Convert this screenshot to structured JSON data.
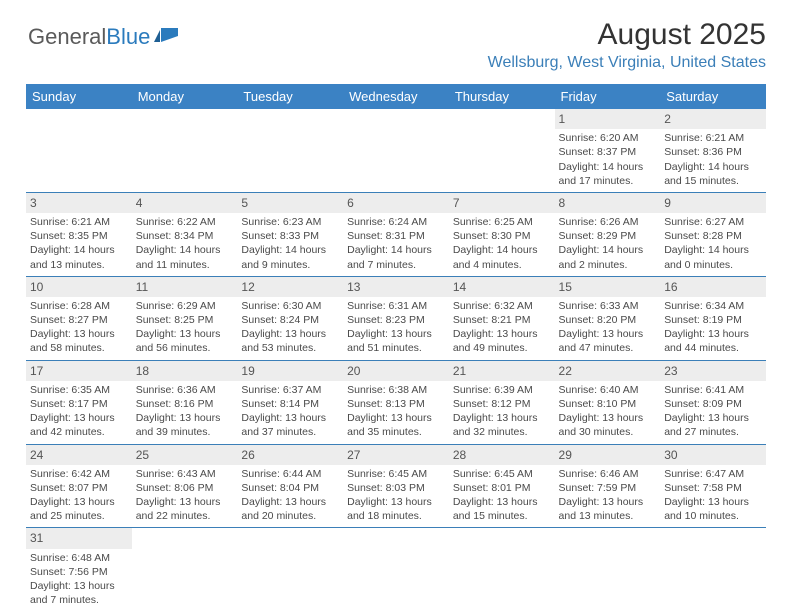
{
  "logo": {
    "general": "General",
    "blue": "Blue"
  },
  "header": {
    "month_title": "August 2025",
    "location": "Wellsburg, West Virginia, United States"
  },
  "colors": {
    "header_bg": "#3b82c4",
    "header_text": "#ffffff",
    "location_text": "#3b7fb8",
    "daynum_bg": "#ededed",
    "cell_border": "#3b7fb8",
    "body_text": "#4a4a4a",
    "logo_general": "#5a5a5a",
    "logo_blue": "#2b7bbd",
    "flag_fill": "#2b7bbd"
  },
  "day_headers": [
    "Sunday",
    "Monday",
    "Tuesday",
    "Wednesday",
    "Thursday",
    "Friday",
    "Saturday"
  ],
  "weeks": [
    [
      null,
      null,
      null,
      null,
      null,
      {
        "n": "1",
        "sr": "Sunrise: 6:20 AM",
        "ss": "Sunset: 8:37 PM",
        "dl1": "Daylight: 14 hours",
        "dl2": "and 17 minutes."
      },
      {
        "n": "2",
        "sr": "Sunrise: 6:21 AM",
        "ss": "Sunset: 8:36 PM",
        "dl1": "Daylight: 14 hours",
        "dl2": "and 15 minutes."
      }
    ],
    [
      {
        "n": "3",
        "sr": "Sunrise: 6:21 AM",
        "ss": "Sunset: 8:35 PM",
        "dl1": "Daylight: 14 hours",
        "dl2": "and 13 minutes."
      },
      {
        "n": "4",
        "sr": "Sunrise: 6:22 AM",
        "ss": "Sunset: 8:34 PM",
        "dl1": "Daylight: 14 hours",
        "dl2": "and 11 minutes."
      },
      {
        "n": "5",
        "sr": "Sunrise: 6:23 AM",
        "ss": "Sunset: 8:33 PM",
        "dl1": "Daylight: 14 hours",
        "dl2": "and 9 minutes."
      },
      {
        "n": "6",
        "sr": "Sunrise: 6:24 AM",
        "ss": "Sunset: 8:31 PM",
        "dl1": "Daylight: 14 hours",
        "dl2": "and 7 minutes."
      },
      {
        "n": "7",
        "sr": "Sunrise: 6:25 AM",
        "ss": "Sunset: 8:30 PM",
        "dl1": "Daylight: 14 hours",
        "dl2": "and 4 minutes."
      },
      {
        "n": "8",
        "sr": "Sunrise: 6:26 AM",
        "ss": "Sunset: 8:29 PM",
        "dl1": "Daylight: 14 hours",
        "dl2": "and 2 minutes."
      },
      {
        "n": "9",
        "sr": "Sunrise: 6:27 AM",
        "ss": "Sunset: 8:28 PM",
        "dl1": "Daylight: 14 hours",
        "dl2": "and 0 minutes."
      }
    ],
    [
      {
        "n": "10",
        "sr": "Sunrise: 6:28 AM",
        "ss": "Sunset: 8:27 PM",
        "dl1": "Daylight: 13 hours",
        "dl2": "and 58 minutes."
      },
      {
        "n": "11",
        "sr": "Sunrise: 6:29 AM",
        "ss": "Sunset: 8:25 PM",
        "dl1": "Daylight: 13 hours",
        "dl2": "and 56 minutes."
      },
      {
        "n": "12",
        "sr": "Sunrise: 6:30 AM",
        "ss": "Sunset: 8:24 PM",
        "dl1": "Daylight: 13 hours",
        "dl2": "and 53 minutes."
      },
      {
        "n": "13",
        "sr": "Sunrise: 6:31 AM",
        "ss": "Sunset: 8:23 PM",
        "dl1": "Daylight: 13 hours",
        "dl2": "and 51 minutes."
      },
      {
        "n": "14",
        "sr": "Sunrise: 6:32 AM",
        "ss": "Sunset: 8:21 PM",
        "dl1": "Daylight: 13 hours",
        "dl2": "and 49 minutes."
      },
      {
        "n": "15",
        "sr": "Sunrise: 6:33 AM",
        "ss": "Sunset: 8:20 PM",
        "dl1": "Daylight: 13 hours",
        "dl2": "and 47 minutes."
      },
      {
        "n": "16",
        "sr": "Sunrise: 6:34 AM",
        "ss": "Sunset: 8:19 PM",
        "dl1": "Daylight: 13 hours",
        "dl2": "and 44 minutes."
      }
    ],
    [
      {
        "n": "17",
        "sr": "Sunrise: 6:35 AM",
        "ss": "Sunset: 8:17 PM",
        "dl1": "Daylight: 13 hours",
        "dl2": "and 42 minutes."
      },
      {
        "n": "18",
        "sr": "Sunrise: 6:36 AM",
        "ss": "Sunset: 8:16 PM",
        "dl1": "Daylight: 13 hours",
        "dl2": "and 39 minutes."
      },
      {
        "n": "19",
        "sr": "Sunrise: 6:37 AM",
        "ss": "Sunset: 8:14 PM",
        "dl1": "Daylight: 13 hours",
        "dl2": "and 37 minutes."
      },
      {
        "n": "20",
        "sr": "Sunrise: 6:38 AM",
        "ss": "Sunset: 8:13 PM",
        "dl1": "Daylight: 13 hours",
        "dl2": "and 35 minutes."
      },
      {
        "n": "21",
        "sr": "Sunrise: 6:39 AM",
        "ss": "Sunset: 8:12 PM",
        "dl1": "Daylight: 13 hours",
        "dl2": "and 32 minutes."
      },
      {
        "n": "22",
        "sr": "Sunrise: 6:40 AM",
        "ss": "Sunset: 8:10 PM",
        "dl1": "Daylight: 13 hours",
        "dl2": "and 30 minutes."
      },
      {
        "n": "23",
        "sr": "Sunrise: 6:41 AM",
        "ss": "Sunset: 8:09 PM",
        "dl1": "Daylight: 13 hours",
        "dl2": "and 27 minutes."
      }
    ],
    [
      {
        "n": "24",
        "sr": "Sunrise: 6:42 AM",
        "ss": "Sunset: 8:07 PM",
        "dl1": "Daylight: 13 hours",
        "dl2": "and 25 minutes."
      },
      {
        "n": "25",
        "sr": "Sunrise: 6:43 AM",
        "ss": "Sunset: 8:06 PM",
        "dl1": "Daylight: 13 hours",
        "dl2": "and 22 minutes."
      },
      {
        "n": "26",
        "sr": "Sunrise: 6:44 AM",
        "ss": "Sunset: 8:04 PM",
        "dl1": "Daylight: 13 hours",
        "dl2": "and 20 minutes."
      },
      {
        "n": "27",
        "sr": "Sunrise: 6:45 AM",
        "ss": "Sunset: 8:03 PM",
        "dl1": "Daylight: 13 hours",
        "dl2": "and 18 minutes."
      },
      {
        "n": "28",
        "sr": "Sunrise: 6:45 AM",
        "ss": "Sunset: 8:01 PM",
        "dl1": "Daylight: 13 hours",
        "dl2": "and 15 minutes."
      },
      {
        "n": "29",
        "sr": "Sunrise: 6:46 AM",
        "ss": "Sunset: 7:59 PM",
        "dl1": "Daylight: 13 hours",
        "dl2": "and 13 minutes."
      },
      {
        "n": "30",
        "sr": "Sunrise: 6:47 AM",
        "ss": "Sunset: 7:58 PM",
        "dl1": "Daylight: 13 hours",
        "dl2": "and 10 minutes."
      }
    ],
    [
      {
        "n": "31",
        "sr": "Sunrise: 6:48 AM",
        "ss": "Sunset: 7:56 PM",
        "dl1": "Daylight: 13 hours",
        "dl2": "and 7 minutes."
      },
      null,
      null,
      null,
      null,
      null,
      null
    ]
  ]
}
